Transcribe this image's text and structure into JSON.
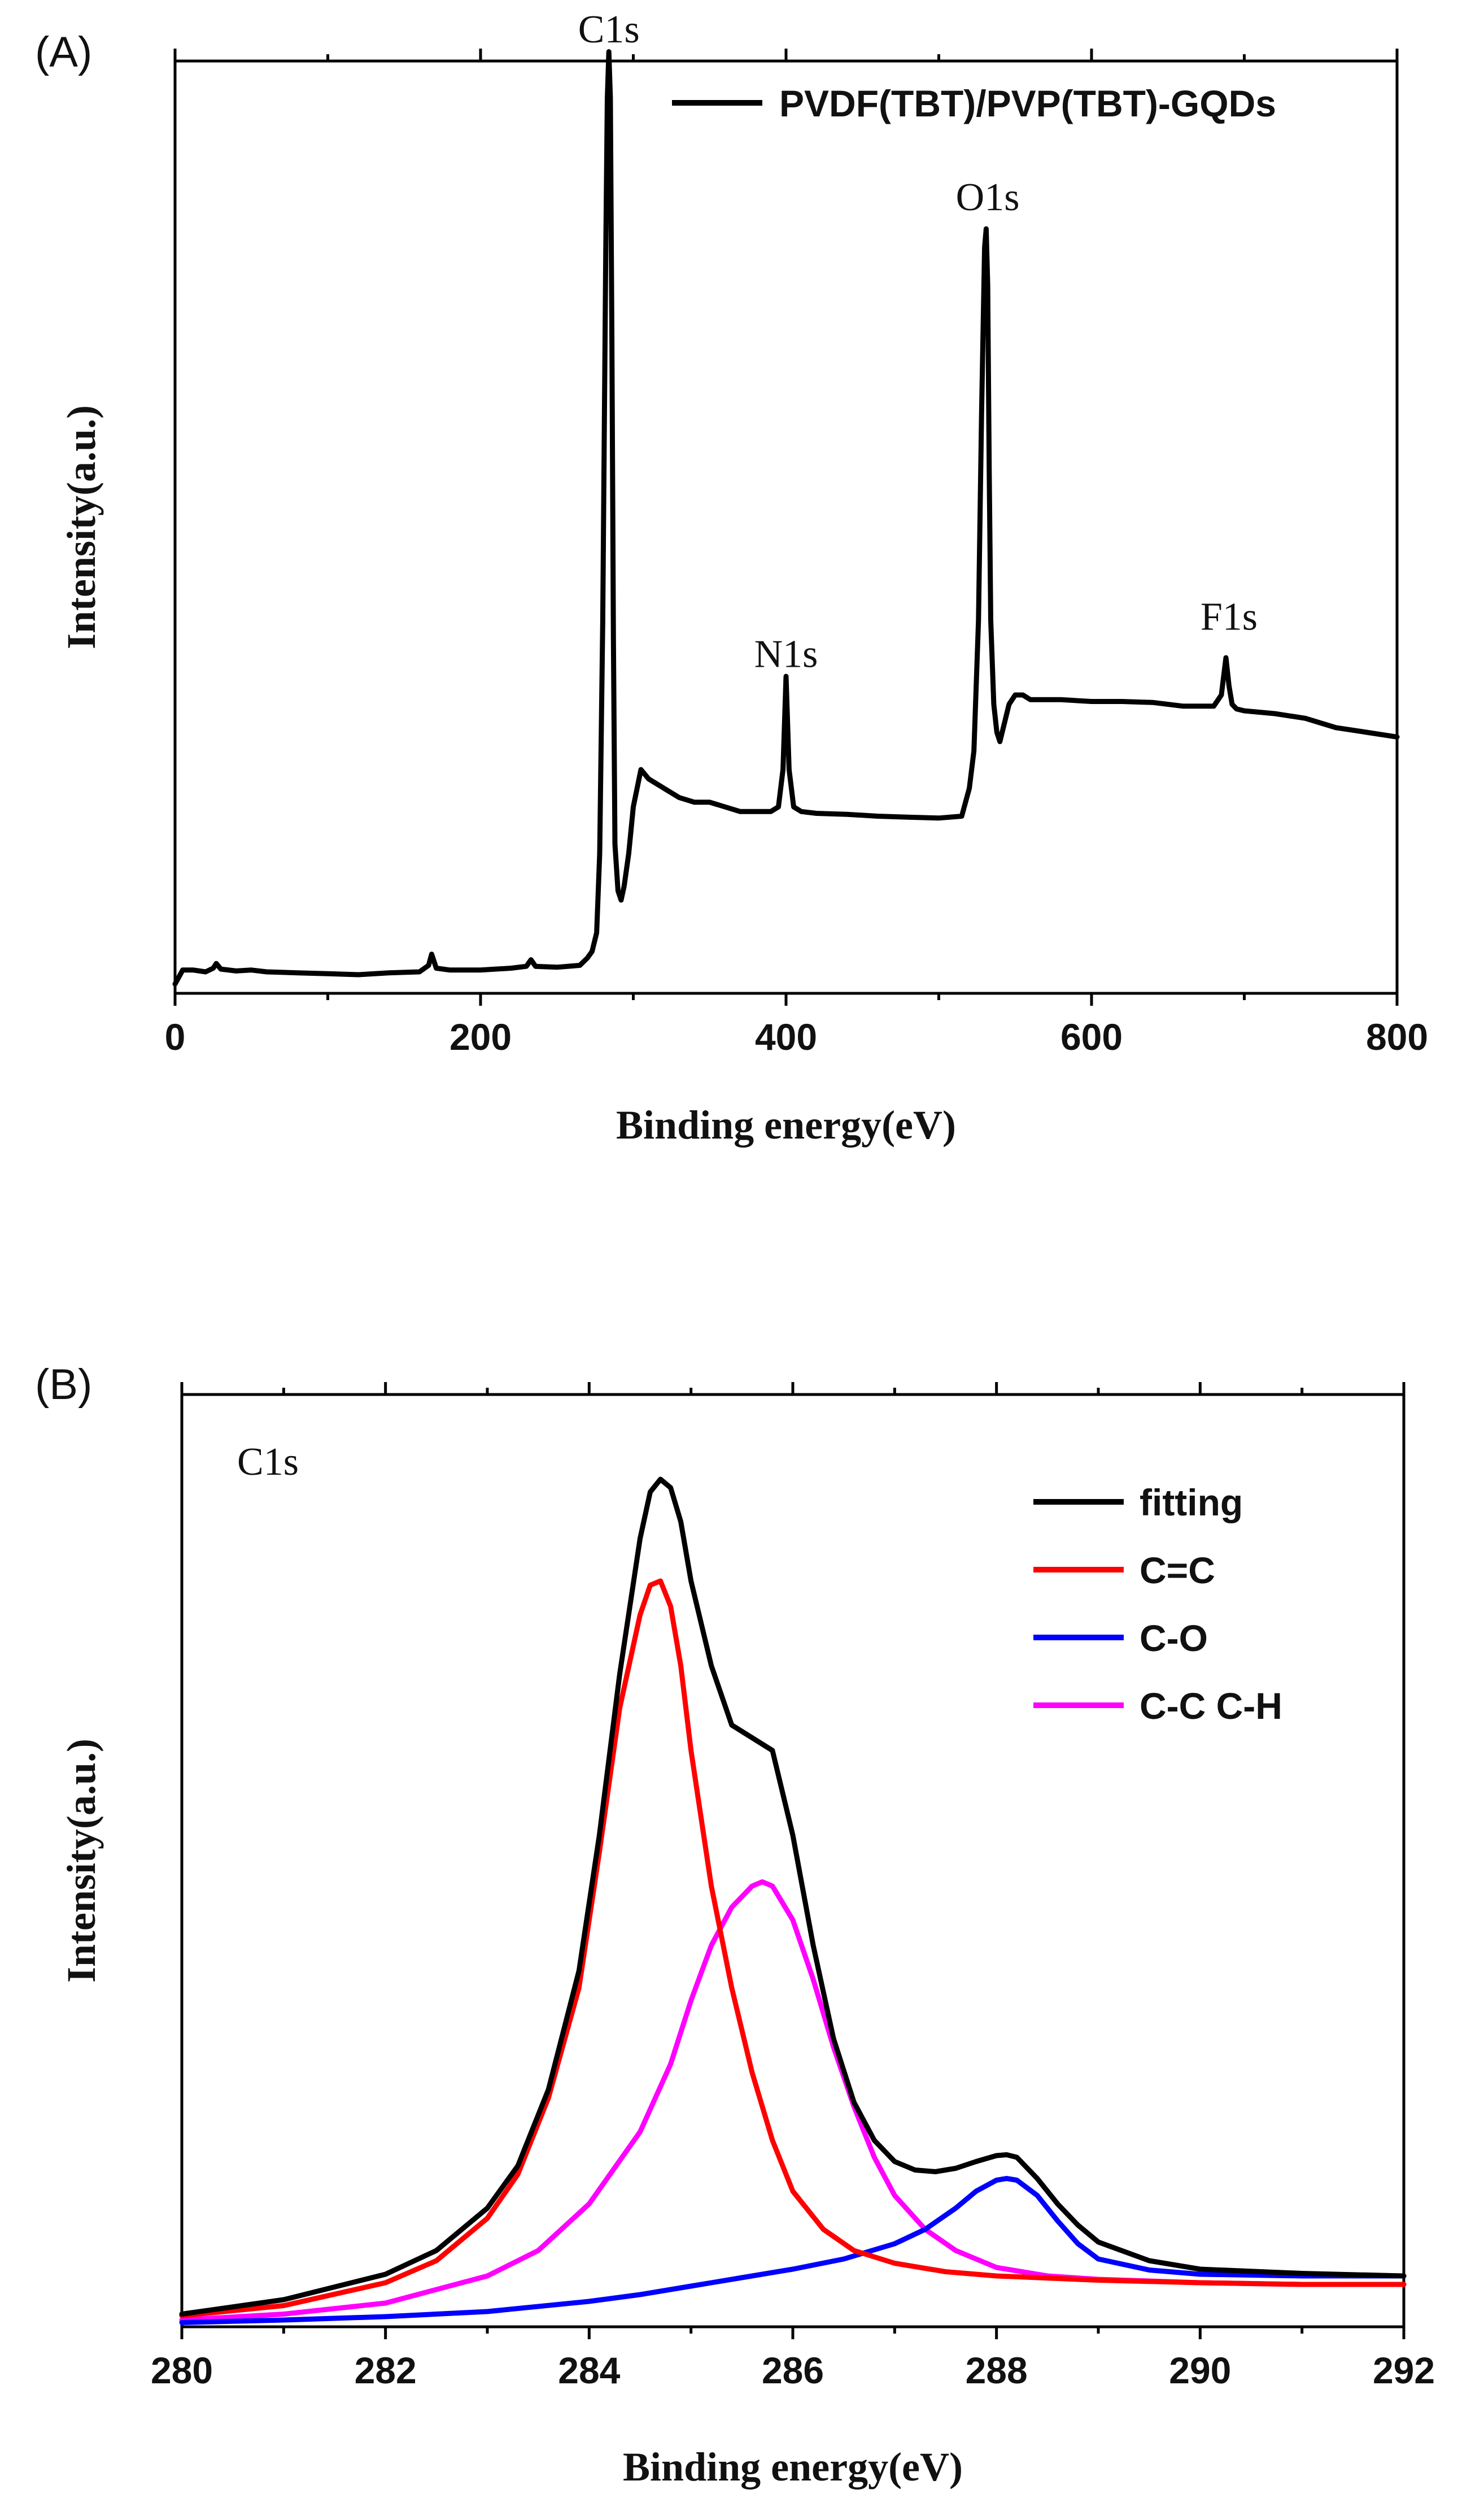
{
  "chart_data": [
    {
      "panel": "(A)",
      "type": "line",
      "xlabel": "Binding energy(eV)",
      "ylabel": "Intensity(a.u.)",
      "xlim": [
        0,
        800
      ],
      "ylim": [
        0,
        100
      ],
      "xticks": [
        0,
        200,
        400,
        600,
        800
      ],
      "legend": {
        "position": "top-right",
        "entries": [
          "PVDF(TBT)/PVP(TBT)-GQDs"
        ]
      },
      "color": "#000000",
      "annotations": [
        {
          "text": "C1s",
          "x": 284,
          "y": 102
        },
        {
          "text": "N1s",
          "x": 400,
          "y": 35
        },
        {
          "text": "O1s",
          "x": 532,
          "y": 84
        },
        {
          "text": "F1s",
          "x": 690,
          "y": 39
        }
      ],
      "series": [
        {
          "name": "PVDF(TBT)/PVP(TBT)-GQDs",
          "x": [
            0,
            5,
            12,
            20,
            25,
            27,
            30,
            40,
            50,
            60,
            80,
            100,
            120,
            140,
            160,
            166,
            168,
            171,
            180,
            200,
            220,
            230,
            233,
            236,
            250,
            265,
            270,
            273,
            276,
            278,
            280,
            282,
            283,
            284,
            285,
            286,
            287,
            288,
            290,
            292,
            294,
            297,
            300,
            305,
            310,
            320,
            330,
            340,
            350,
            360,
            370,
            380,
            390,
            395,
            398,
            400,
            402,
            405,
            410,
            420,
            440,
            460,
            480,
            500,
            515,
            520,
            523,
            526,
            528,
            530,
            531,
            532,
            533,
            534,
            536,
            538,
            540,
            543,
            546,
            550,
            555,
            560,
            570,
            580,
            600,
            620,
            640,
            660,
            680,
            685,
            688,
            690,
            692,
            695,
            700,
            720,
            740,
            760,
            780,
            800
          ],
          "y": [
            1,
            2.5,
            2.5,
            2.3,
            2.7,
            3.2,
            2.6,
            2.4,
            2.5,
            2.3,
            2.2,
            2.1,
            2.0,
            2.2,
            2.3,
            3.0,
            4.2,
            2.7,
            2.5,
            2.5,
            2.7,
            2.9,
            3.6,
            2.9,
            2.8,
            3.0,
            3.8,
            4.5,
            6.5,
            15,
            40,
            80,
            96,
            101,
            96,
            70,
            38,
            16,
            11,
            10,
            11.5,
            15,
            20,
            24,
            23,
            22,
            21,
            20.5,
            20.5,
            20,
            19.5,
            19.5,
            19.5,
            20,
            24,
            34,
            24,
            20,
            19.5,
            19.3,
            19.2,
            19.0,
            18.9,
            18.8,
            19,
            22,
            26,
            40,
            62,
            80,
            82,
            76,
            56,
            40,
            31,
            28,
            27,
            29,
            31,
            32,
            32,
            31.5,
            31.5,
            31.5,
            31.3,
            31.3,
            31.2,
            30.8,
            30.8,
            32,
            36,
            33,
            31,
            30.5,
            30.3,
            30,
            29.5,
            28.5,
            28,
            27.5
          ]
        }
      ]
    },
    {
      "panel": "(B)",
      "type": "line",
      "title": "C1s",
      "xlabel": "Binding energy(eV)",
      "ylabel": "Intensity(a.u.)",
      "xlim": [
        280,
        292
      ],
      "ylim": [
        0,
        110
      ],
      "xticks": [
        280,
        282,
        284,
        286,
        288,
        290,
        292
      ],
      "legend": {
        "position": "top-right",
        "entries": [
          "fitting",
          "C=C",
          "C-O",
          "C-C C-H"
        ]
      },
      "series": [
        {
          "name": "fitting",
          "color": "#000000",
          "x": [
            280.0,
            281.0,
            282.0,
            282.5,
            283.0,
            283.3,
            283.6,
            283.9,
            284.1,
            284.3,
            284.5,
            284.6,
            284.7,
            284.8,
            284.9,
            285.0,
            285.2,
            285.4,
            285.6,
            285.8,
            286.0,
            286.2,
            286.4,
            286.6,
            286.8,
            287.0,
            287.2,
            287.4,
            287.6,
            287.8,
            288.0,
            288.1,
            288.2,
            288.4,
            288.6,
            288.8,
            289.0,
            289.5,
            290.0,
            291.0,
            292.0
          ],
          "y": [
            1.5,
            3.2,
            6.2,
            9.0,
            14.0,
            19.0,
            28.0,
            42.0,
            58.0,
            77.0,
            93.0,
            98.5,
            100.0,
            99.0,
            95.0,
            88.0,
            78.0,
            71.0,
            69.5,
            68.0,
            58.0,
            45.0,
            34.0,
            26.5,
            22.0,
            19.5,
            18.5,
            18.3,
            18.7,
            19.5,
            20.2,
            20.3,
            20.0,
            17.5,
            14.5,
            12.0,
            10.0,
            7.8,
            6.8,
            6.3,
            6.0
          ]
        },
        {
          "name": "C=C",
          "color": "#ff0000",
          "x": [
            280.0,
            281.0,
            282.0,
            282.5,
            283.0,
            283.3,
            283.6,
            283.9,
            284.1,
            284.3,
            284.5,
            284.6,
            284.7,
            284.8,
            284.9,
            285.0,
            285.2,
            285.4,
            285.6,
            285.8,
            286.0,
            286.3,
            286.6,
            287.0,
            287.5,
            288.0,
            289.0,
            290.0,
            291.0,
            292.0
          ],
          "y": [
            1.3,
            2.5,
            5.2,
            7.8,
            12.8,
            18.0,
            27.0,
            40.0,
            56.0,
            73.0,
            84.0,
            87.5,
            88.0,
            85.0,
            78.0,
            68.0,
            52.0,
            40.0,
            30.0,
            22.0,
            16.0,
            11.5,
            9.0,
            7.5,
            6.5,
            6.0,
            5.5,
            5.2,
            5.0,
            5.0
          ]
        },
        {
          "name": "C-O",
          "color": "#0000ff",
          "x": [
            280.0,
            281.0,
            282.0,
            283.0,
            284.0,
            284.5,
            285.0,
            285.5,
            286.0,
            286.5,
            287.0,
            287.3,
            287.6,
            287.8,
            288.0,
            288.1,
            288.2,
            288.4,
            288.6,
            288.8,
            289.0,
            289.5,
            290.0,
            291.0,
            292.0
          ],
          "y": [
            0.5,
            0.8,
            1.2,
            1.8,
            3.0,
            3.8,
            4.8,
            5.8,
            6.8,
            8.0,
            9.8,
            11.5,
            14.0,
            16.0,
            17.3,
            17.5,
            17.3,
            15.5,
            12.5,
            9.8,
            8.0,
            6.7,
            6.2,
            6.0,
            6.0
          ]
        },
        {
          "name": "C-C C-H",
          "color": "#ff00ff",
          "x": [
            280.0,
            281.0,
            282.0,
            283.0,
            283.5,
            284.0,
            284.5,
            284.8,
            285.0,
            285.2,
            285.4,
            285.6,
            285.7,
            285.8,
            286.0,
            286.2,
            286.4,
            286.6,
            286.8,
            287.0,
            287.3,
            287.6,
            288.0,
            288.5,
            289.0,
            290.0,
            291.0,
            292.0
          ],
          "y": [
            0.8,
            1.5,
            2.8,
            6.0,
            9.0,
            14.5,
            23.0,
            31.0,
            38.5,
            45.0,
            49.5,
            52.0,
            52.5,
            52.0,
            48.0,
            41.0,
            33.0,
            26.0,
            20.0,
            15.5,
            11.5,
            9.0,
            7.0,
            6.0,
            5.6,
            5.2,
            5.0,
            5.0
          ]
        }
      ]
    }
  ]
}
